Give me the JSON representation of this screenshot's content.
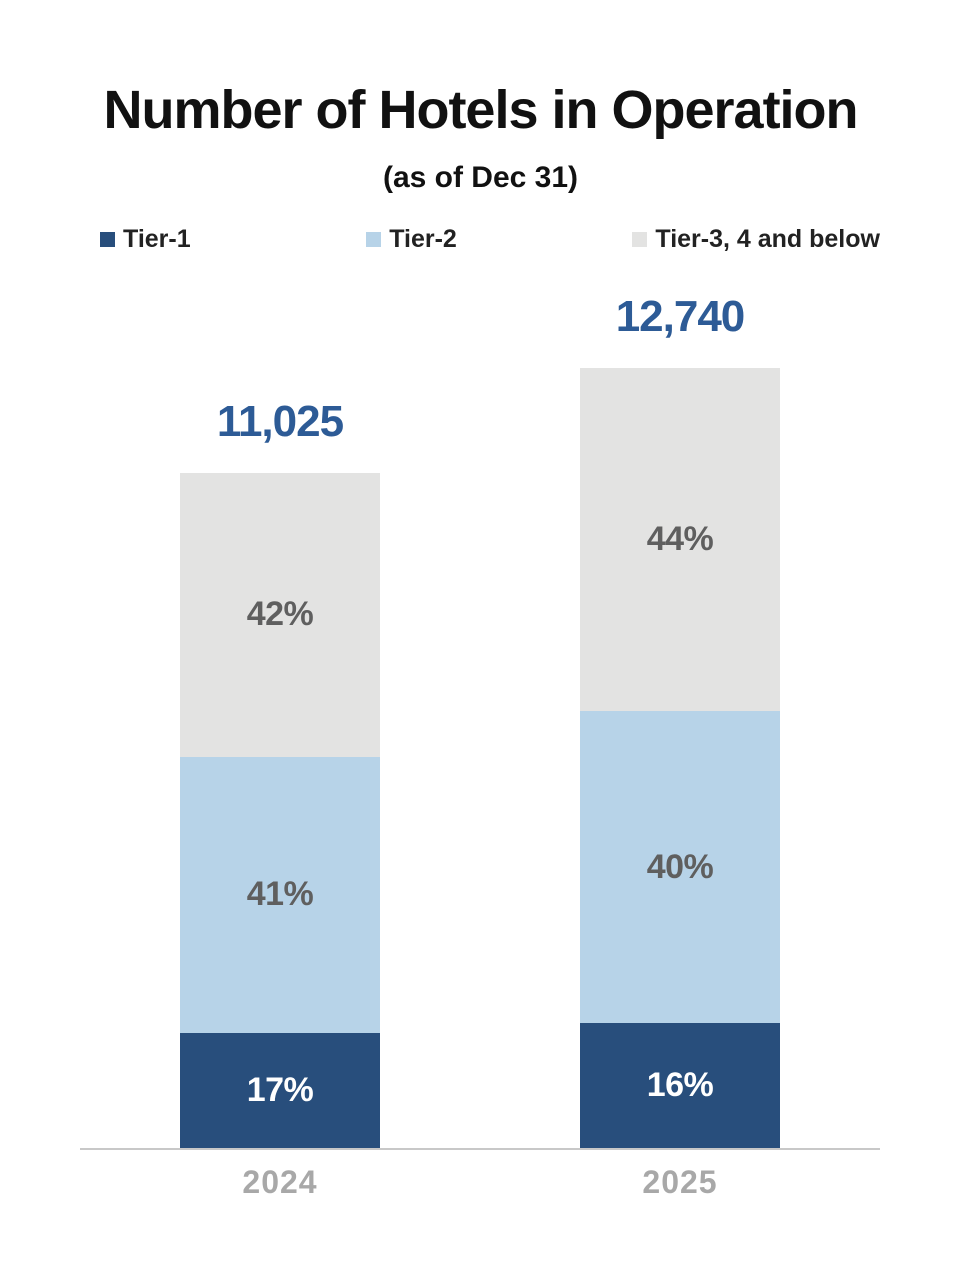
{
  "title": "Number of Hotels in Operation",
  "subtitle": "(as of Dec 31)",
  "legend": [
    {
      "label": "Tier-1",
      "color": "#284e7c"
    },
    {
      "label": "Tier-2",
      "color": "#b7d3e8"
    },
    {
      "label": "Tier-3, 4 and below",
      "color": "#e3e3e2"
    }
  ],
  "colors": {
    "tier1_bar": "#284e7c",
    "tier2_bar": "#b7d3e8",
    "tier3_bar": "#e3e3e2",
    "total_label": "#2d5b96",
    "segment_label_gray": "#5f5f5f",
    "segment_label_white": "#ffffff",
    "axis_label": "#a8a8a8"
  },
  "chart_data": {
    "type": "bar",
    "stacked": true,
    "title": "Number of Hotels in Operation",
    "subtitle": "(as of Dec 31)",
    "legend_position": "top",
    "grid": false,
    "categories": [
      "2024",
      "2025"
    ],
    "totals": [
      "11,025",
      "12,740"
    ],
    "totals_numeric": [
      11025,
      12740
    ],
    "series": [
      {
        "name": "Tier-1",
        "color": "#284e7c",
        "values_pct": [
          17,
          16
        ],
        "labels": [
          "17%",
          "16%"
        ]
      },
      {
        "name": "Tier-2",
        "color": "#b7d3e8",
        "values_pct": [
          41,
          40
        ],
        "labels": [
          "41%",
          "40%"
        ]
      },
      {
        "name": "Tier-3, 4 and below",
        "color": "#e3e3e2",
        "values_pct": [
          42,
          44
        ],
        "labels": [
          "42%",
          "44%"
        ]
      }
    ]
  }
}
